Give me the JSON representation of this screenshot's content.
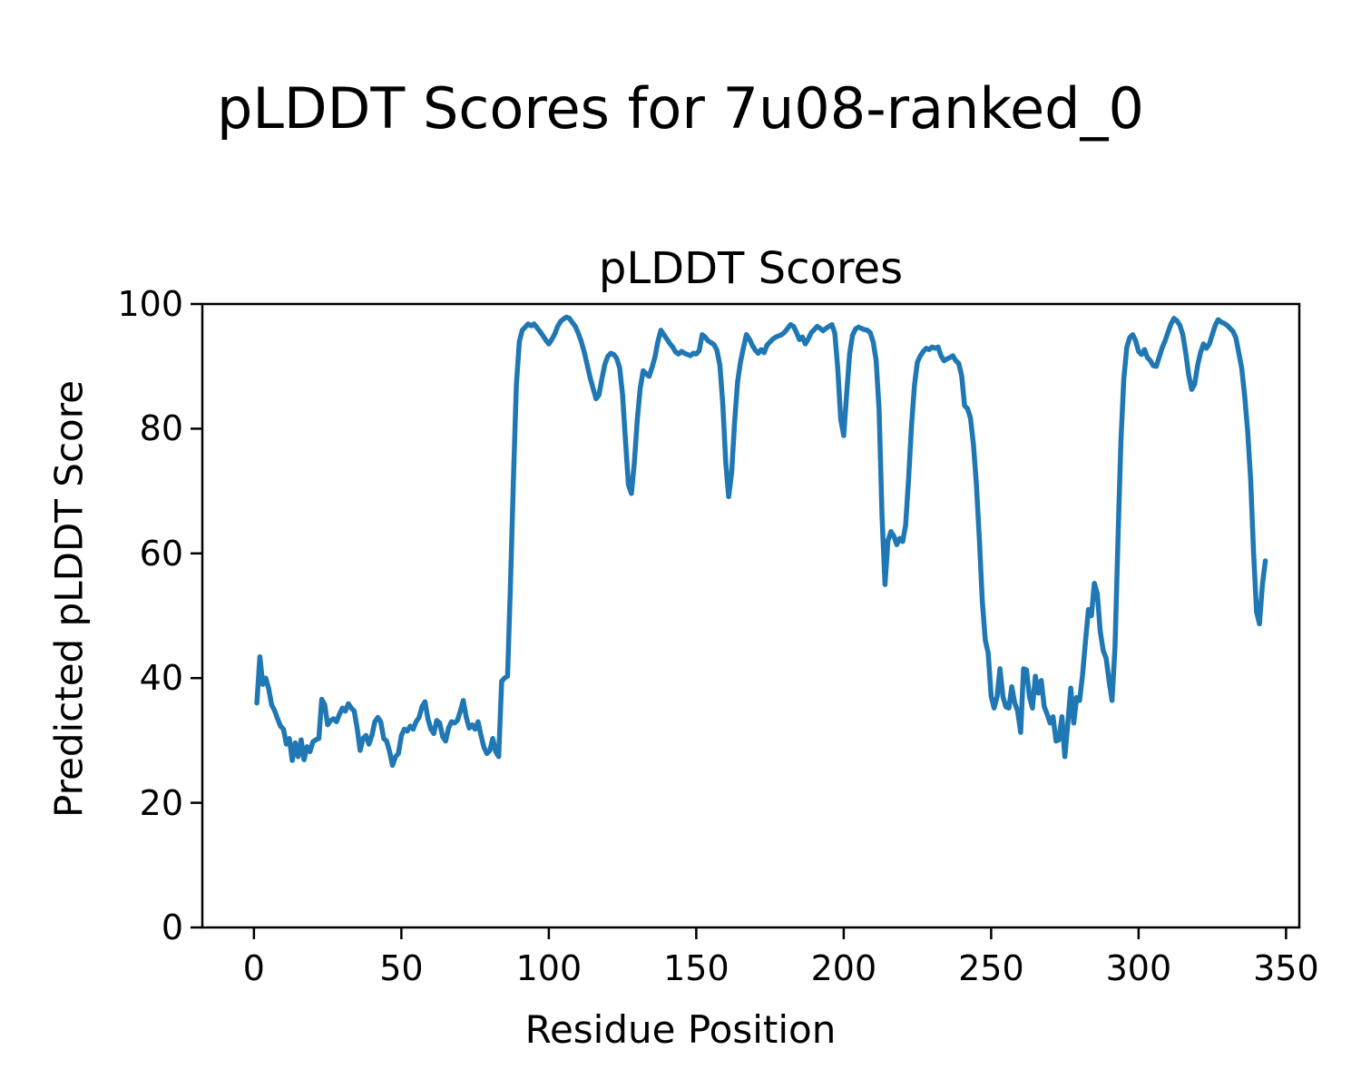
{
  "figure": {
    "suptitle": "pLDDT Scores for 7u08-ranked_0",
    "background_color": "#ffffff",
    "text_color": "#000000"
  },
  "chart_data": {
    "type": "line",
    "title": "pLDDT Scores",
    "xlabel": "Residue Position",
    "ylabel": "Predicted pLDDT Score",
    "legend": "none",
    "grid": false,
    "line_color": "#1f77b4",
    "line_width": 5.5,
    "xlim": [
      -17.5,
      354.5
    ],
    "ylim": [
      0,
      100
    ],
    "x_ticks": [
      0,
      50,
      100,
      150,
      200,
      250,
      300,
      350
    ],
    "y_ticks": [
      0,
      20,
      40,
      60,
      80,
      100
    ],
    "x_start": 1,
    "x_step": 1,
    "values": [
      36.0,
      43.4,
      39.0,
      40.0,
      38.3,
      35.7,
      34.8,
      33.5,
      32.3,
      31.8,
      29.4,
      30.3,
      26.8,
      29.6,
      27.4,
      30.1,
      26.9,
      29.0,
      28.2,
      29.8,
      30.1,
      30.3,
      36.6,
      35.7,
      32.5,
      33.2,
      33.5,
      33.0,
      34.2,
      35.2,
      34.7,
      35.9,
      35.2,
      34.7,
      32.0,
      28.4,
      30.3,
      30.8,
      29.4,
      30.8,
      33.0,
      33.7,
      33.0,
      30.3,
      29.9,
      28.2,
      26.0,
      27.4,
      27.9,
      30.8,
      31.8,
      31.5,
      32.3,
      31.8,
      33.0,
      33.7,
      35.4,
      36.2,
      33.5,
      31.8,
      31.1,
      33.2,
      32.8,
      30.6,
      29.9,
      32.0,
      33.0,
      32.8,
      33.2,
      34.7,
      36.4,
      33.7,
      32.0,
      32.5,
      31.8,
      33.0,
      30.8,
      28.9,
      27.9,
      28.4,
      30.3,
      28.2,
      27.4,
      39.5,
      40.0,
      40.3,
      55.0,
      72.0,
      87.0,
      94.0,
      95.8,
      96.3,
      96.8,
      96.5,
      96.8,
      96.2,
      95.6,
      94.9,
      94.2,
      93.6,
      94.3,
      95.2,
      96.4,
      97.2,
      97.6,
      97.9,
      97.7,
      97.0,
      96.4,
      95.3,
      94.0,
      92.3,
      90.3,
      88.2,
      86.5,
      84.8,
      85.4,
      88.0,
      90.3,
      91.6,
      92.1,
      91.9,
      91.3,
      89.8,
      85.5,
      78.0,
      71.0,
      69.6,
      74.5,
      81.5,
      86.5,
      89.3,
      88.8,
      88.4,
      89.8,
      91.5,
      94.0,
      95.8,
      95.1,
      94.4,
      93.7,
      93.1,
      92.3,
      92.0,
      92.4,
      92.1,
      91.9,
      91.7,
      92.1,
      92.0,
      92.5,
      95.1,
      94.7,
      94.1,
      93.8,
      93.5,
      92.6,
      90.2,
      84.0,
      74.5,
      69.1,
      73.0,
      81.0,
      87.5,
      90.7,
      93.0,
      95.1,
      94.4,
      93.4,
      92.6,
      92.1,
      92.7,
      92.2,
      93.4,
      93.9,
      94.4,
      94.7,
      94.9,
      95.1,
      95.5,
      96.1,
      96.7,
      96.4,
      95.4,
      94.3,
      94.7,
      93.6,
      94.4,
      95.4,
      95.9,
      96.4,
      96.1,
      95.7,
      96.1,
      96.4,
      96.7,
      95.3,
      89.5,
      81.5,
      78.9,
      85.5,
      92.0,
      95.0,
      96.0,
      96.3,
      96.1,
      95.9,
      95.8,
      95.4,
      93.9,
      91.0,
      83.0,
      66.0,
      55.0,
      62.0,
      63.5,
      62.8,
      61.4,
      62.4,
      61.9,
      64.5,
      72.0,
      80.5,
      87.0,
      90.7,
      91.7,
      92.4,
      92.9,
      92.7,
      93.1,
      92.9,
      93.1,
      91.7,
      90.9,
      91.2,
      91.4,
      91.7,
      90.9,
      90.5,
      88.5,
      83.7,
      83.2,
      81.7,
      77.4,
      71.1,
      62.3,
      52.4,
      46.1,
      44.0,
      37.1,
      35.2,
      37.0,
      41.5,
      37.0,
      35.4,
      35.2,
      38.6,
      36.0,
      34.7,
      31.3,
      41.5,
      41.3,
      37.0,
      35.2,
      40.3,
      37.6,
      39.6,
      35.4,
      34.2,
      32.8,
      33.8,
      29.9,
      30.1,
      33.8,
      27.4,
      32.8,
      38.4,
      32.8,
      36.9,
      36.4,
      40.5,
      46.0,
      51.0,
      50.0,
      55.2,
      53.5,
      47.5,
      44.4,
      43.2,
      39.5,
      36.4,
      45.0,
      62.0,
      78.0,
      88.0,
      93.1,
      94.6,
      95.1,
      94.1,
      92.4,
      91.9,
      92.7,
      91.4,
      90.9,
      90.1,
      90.0,
      91.5,
      93.0,
      94.1,
      95.5,
      96.8,
      97.7,
      97.3,
      96.6,
      95.1,
      92.1,
      88.6,
      86.3,
      87.1,
      90.1,
      92.2,
      93.6,
      92.9,
      93.6,
      95.1,
      96.6,
      97.5,
      97.1,
      96.9,
      96.6,
      96.1,
      95.6,
      94.6,
      92.1,
      89.6,
      85.1,
      79.6,
      71.8,
      60.1,
      50.6,
      48.7,
      55.1,
      58.8
    ]
  }
}
